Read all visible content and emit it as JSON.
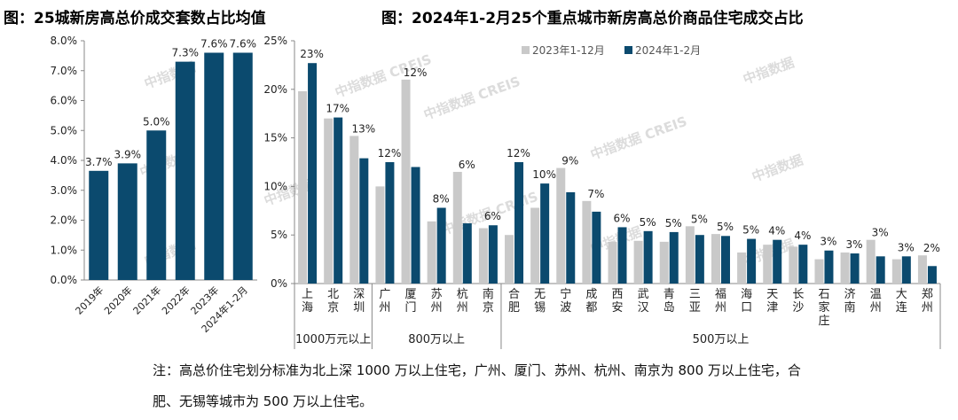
{
  "titles": {
    "left": "图：25城新房高总价成交套数占比均值",
    "right": "图：2024年1-2月25个重点城市新房高总价商品住宅成交占比"
  },
  "watermarks": [
    "中指数据",
    "中指数据 CREIS"
  ],
  "colors": {
    "navy": "#0b4a6e",
    "gray": "#c9c9c9",
    "axis": "#888888",
    "text": "#222222"
  },
  "note": {
    "line1": "注：高总价住宅划分标准为北上深 1000 万以上住宅，广州、厦门、苏州、杭州、南京为 800 万以上住宅，合",
    "line2": "肥、无锡等城市为 500 万以上住宅。"
  },
  "chart_data": [
    {
      "type": "bar",
      "title": "25城新房高总价成交套数占比均值",
      "categories": [
        "2019年",
        "2020年",
        "2021年",
        "2022年",
        "2023年",
        "2024年1-2月"
      ],
      "values": [
        3.65,
        3.9,
        5.0,
        7.3,
        7.6,
        7.6
      ],
      "labels": [
        "3.7%",
        "3.9%",
        "5.0%",
        "7.3%",
        "7.6%",
        "7.6%"
      ],
      "yticks": [
        "0.0%",
        "1.0%",
        "2.0%",
        "3.0%",
        "4.0%",
        "5.0%",
        "6.0%",
        "7.0%",
        "8.0%"
      ],
      "ylim": [
        0,
        8
      ],
      "xlabel": "",
      "ylabel": ""
    },
    {
      "type": "bar",
      "title": "2024年1-2月25个重点城市新房高总价商品住宅成交占比",
      "categories": [
        "上海",
        "北京",
        "深圳",
        "广州",
        "厦门",
        "苏州",
        "杭州",
        "南京",
        "合肥",
        "无锡",
        "宁波",
        "成都",
        "西安",
        "武汉",
        "青岛",
        "三亚",
        "福州",
        "海口",
        "天津",
        "长沙",
        "石家庄",
        "济南",
        "温州",
        "大连",
        "郑州"
      ],
      "series": [
        {
          "name": "2023年1-12月",
          "values": [
            19.8,
            17.0,
            15.2,
            10.0,
            21.0,
            6.4,
            11.5,
            5.7,
            5.0,
            7.8,
            11.9,
            8.5,
            4.3,
            4.4,
            4.3,
            5.9,
            5.1,
            3.2,
            4.0,
            3.8,
            2.5,
            3.2,
            4.5,
            2.5,
            2.9
          ]
        },
        {
          "name": "2024年1-2月",
          "values": [
            22.7,
            17.1,
            12.9,
            12.5,
            12.0,
            7.8,
            6.2,
            6.0,
            12.5,
            10.3,
            9.4,
            7.4,
            5.8,
            5.4,
            5.3,
            5.0,
            4.9,
            4.6,
            4.5,
            4.0,
            3.4,
            3.1,
            2.8,
            2.8,
            1.8
          ]
        }
      ],
      "labels": [
        "23%",
        "17%",
        "13%",
        "12%",
        "12%",
        "8%",
        "6%",
        "6%",
        "12%",
        "10%",
        "9%",
        "7%",
        "6%",
        "5%",
        "5%",
        "5%",
        "5%",
        "5%",
        "4%",
        "4%",
        "3%",
        "3%",
        "3%",
        "3%",
        "2%"
      ],
      "groups": [
        {
          "label": "1000万元以上",
          "count": 3
        },
        {
          "label": "800万以上",
          "count": 5
        },
        {
          "label": "500万以上",
          "count": 17
        }
      ],
      "yticks": [
        "0%",
        "5%",
        "10%",
        "15%",
        "20%",
        "25%"
      ],
      "ylim": [
        0,
        25
      ],
      "legend": "top-center",
      "xlabel": "",
      "ylabel": ""
    }
  ]
}
